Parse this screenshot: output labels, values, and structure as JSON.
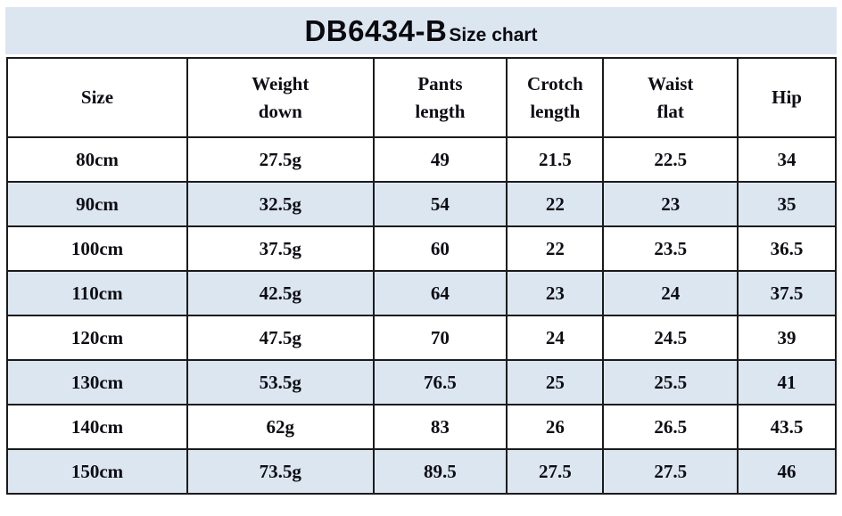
{
  "title": {
    "model": "DB6434-B",
    "suffix": "Size chart"
  },
  "colors": {
    "band_background": "#dce6f1",
    "row_alternate": "#dce6f1",
    "row_default": "#ffffff",
    "border": "#1b1b1b",
    "text": "#0d0d14"
  },
  "chart_data": {
    "type": "table",
    "title": "DB6434-B Size chart",
    "columns": [
      {
        "label": "Size",
        "lines": [
          "Size"
        ]
      },
      {
        "label": "Weight down",
        "lines": [
          "Weight",
          "down"
        ]
      },
      {
        "label": "Pants length",
        "lines": [
          "Pants",
          "length"
        ]
      },
      {
        "label": "Crotch length",
        "lines": [
          "Crotch",
          "length"
        ]
      },
      {
        "label": "Waist flat",
        "lines": [
          "Waist",
          "flat"
        ]
      },
      {
        "label": "Hip",
        "lines": [
          "Hip"
        ]
      }
    ],
    "rows": [
      [
        "80cm",
        "27.5g",
        "49",
        "21.5",
        "22.5",
        "34"
      ],
      [
        "90cm",
        "32.5g",
        "54",
        "22",
        "23",
        "35"
      ],
      [
        "100cm",
        "37.5g",
        "60",
        "22",
        "23.5",
        "36.5"
      ],
      [
        "110cm",
        "42.5g",
        "64",
        "23",
        "24",
        "37.5"
      ],
      [
        "120cm",
        "47.5g",
        "70",
        "24",
        "24.5",
        "39"
      ],
      [
        "130cm",
        "53.5g",
        "76.5",
        "25",
        "25.5",
        "41"
      ],
      [
        "140cm",
        "62g",
        "83",
        "26",
        "26.5",
        "43.5"
      ],
      [
        "150cm",
        "73.5g",
        "89.5",
        "27.5",
        "27.5",
        "46"
      ]
    ],
    "layout": {
      "column_width_percent": [
        21.7,
        22.4,
        16.1,
        11.6,
        16.2,
        11.8
      ],
      "striping": "alternate rows shaded, starting from second data row",
      "grid": true
    }
  }
}
